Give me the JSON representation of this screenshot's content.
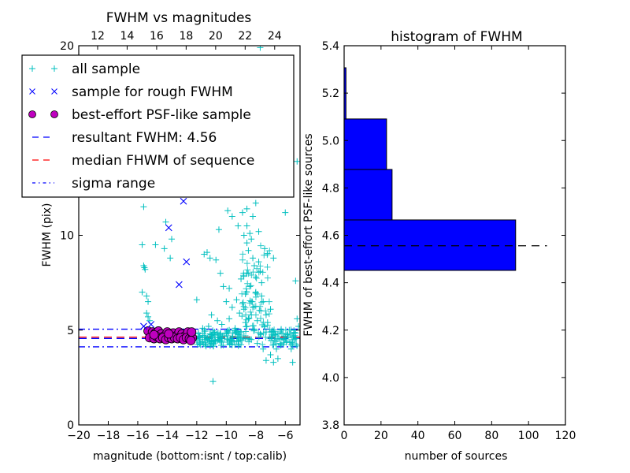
{
  "chart_data": [
    {
      "type": "scatter",
      "title": "FWHM vs magnitudes",
      "xlabel": "magnitude (bottom:isnt / top:calib)",
      "ylabel": "FWHM (pix)",
      "xlim": [
        -20,
        -5
      ],
      "ylim": [
        0,
        20
      ],
      "xticks": [
        "−20",
        "−18",
        "−16",
        "−14",
        "−12",
        "−10",
        "−8",
        "−6"
      ],
      "xtick_values": [
        -20,
        -18,
        -16,
        -14,
        -12,
        -10,
        -8,
        -6
      ],
      "yticks": [
        "0",
        "5",
        "10",
        "20"
      ],
      "ytick_values": [
        0,
        5,
        10,
        20
      ],
      "top_axis": {
        "ticks": [
          "12",
          "14",
          "16",
          "18",
          "20",
          "22",
          "24"
        ],
        "tick_values": [
          12,
          14,
          16,
          18,
          20,
          22,
          24
        ],
        "offset_to_isnt": -30.72
      },
      "legend": {
        "placement": "upper-left",
        "entries": [
          {
            "label": "all sample",
            "marker": "plus",
            "color": "#00bfbf"
          },
          {
            "label": "sample for rough FWHM",
            "marker": "x",
            "color": "#0000ff"
          },
          {
            "label": "best-effort PSF-like sample",
            "marker": "circle",
            "color": "#bf00bf"
          },
          {
            "label": "resultant FWHM: 4.56",
            "marker": "dashed-line",
            "color": "#0000ff"
          },
          {
            "label": "median FHWM of sequence",
            "marker": "dashed-line",
            "color": "#ff0000"
          },
          {
            "label": "sigma range",
            "marker": "dashdot-line",
            "color": "#0000ff"
          }
        ]
      },
      "series": [
        {
          "name": "all sample",
          "color": "#00bfbf",
          "points": [
            [
              -15.6,
              11.5
            ],
            [
              -15.7,
              9.5
            ],
            [
              -15.6,
              8.4
            ],
            [
              -15.55,
              8.3
            ],
            [
              -15.5,
              8.2
            ],
            [
              -15.7,
              7.0
            ],
            [
              -15.4,
              6.8
            ],
            [
              -15.3,
              6.5
            ],
            [
              -15.4,
              5.9
            ],
            [
              -15.3,
              5.7
            ],
            [
              -15.2,
              5.5
            ],
            [
              -14.8,
              9.5
            ],
            [
              -14.1,
              10.7
            ],
            [
              -14.2,
              9.3
            ],
            [
              -13.7,
              9.8
            ],
            [
              -13.8,
              8.8
            ],
            [
              -12.7,
              12.4
            ],
            [
              -12.0,
              6.6
            ],
            [
              -11.5,
              9.0
            ],
            [
              -11.3,
              9.1
            ],
            [
              -11.1,
              8.8
            ],
            [
              -10.7,
              8.7
            ],
            [
              -10.4,
              8.0
            ],
            [
              -10.2,
              7.3
            ],
            [
              -10.0,
              6.5
            ],
            [
              -9.8,
              7.2
            ],
            [
              -10.5,
              10.3
            ],
            [
              -9.9,
              11.3
            ],
            [
              -9.6,
              11.0
            ],
            [
              -9.2,
              10.5
            ],
            [
              -8.9,
              11.2
            ],
            [
              -8.6,
              11.4
            ],
            [
              -8.6,
              10.5
            ],
            [
              -8.4,
              10.1
            ],
            [
              -8.3,
              9.8
            ],
            [
              -8.5,
              9.2
            ],
            [
              -8.2,
              8.8
            ],
            [
              -8.1,
              8.4
            ],
            [
              -8.0,
              7.8
            ],
            [
              -8.4,
              7.3
            ],
            [
              -8.7,
              6.9
            ],
            [
              -8.9,
              6.4
            ],
            [
              -9.3,
              6.6
            ],
            [
              -9.6,
              6.2
            ],
            [
              -9.1,
              5.9
            ],
            [
              -8.5,
              5.6
            ],
            [
              -8.2,
              6.2
            ],
            [
              -7.9,
              6.9
            ],
            [
              -7.6,
              7.5
            ],
            [
              -7.5,
              6.5
            ],
            [
              -7.3,
              5.8
            ],
            [
              -7.2,
              5.4
            ],
            [
              -7.7,
              8.1
            ],
            [
              -6.8,
              8.8
            ],
            [
              -6.0,
              11.2
            ],
            [
              -5.3,
              7.6
            ],
            [
              -5.2,
              5.6
            ],
            [
              -5.1,
              5.2
            ],
            [
              -5.4,
              4.5
            ],
            [
              -5.6,
              4.0
            ],
            [
              -5.5,
              3.3
            ],
            [
              -6.5,
              3.5
            ],
            [
              -6.8,
              3.3
            ],
            [
              -7.0,
              3.7
            ],
            [
              -7.3,
              3.4
            ],
            [
              -7.5,
              4.0
            ],
            [
              -7.9,
              4.3
            ],
            [
              -8.3,
              4.5
            ],
            [
              -8.8,
              4.7
            ],
            [
              -9.2,
              4.4
            ],
            [
              -9.6,
              4.6
            ],
            [
              -10.0,
              4.8
            ],
            [
              -10.5,
              4.6
            ],
            [
              -11.0,
              4.7
            ],
            [
              -11.4,
              4.5
            ],
            [
              -11.8,
              4.6
            ],
            [
              -11.9,
              4.8
            ],
            [
              -11.6,
              5.1
            ],
            [
              -11.2,
              5.2
            ],
            [
              -10.8,
              4.9
            ],
            [
              -10.3,
              5.3
            ],
            [
              -9.8,
              5.0
            ],
            [
              -9.4,
              5.1
            ],
            [
              -9.0,
              4.9
            ],
            [
              -8.6,
              5.2
            ],
            [
              -8.1,
              5.0
            ],
            [
              -7.7,
              4.8
            ],
            [
              -7.3,
              4.9
            ],
            [
              -6.9,
              4.7
            ],
            [
              -6.5,
              4.8
            ],
            [
              -6.1,
              4.5
            ],
            [
              -5.8,
              4.6
            ],
            [
              -6.3,
              4.2
            ],
            [
              -6.6,
              4.0
            ],
            [
              -10.9,
              2.3
            ],
            [
              -8.5,
              12.3
            ],
            [
              -8.3,
              12.7
            ],
            [
              -7.9,
              12.9
            ],
            [
              -8.0,
              12.2
            ],
            [
              -9.5,
              12.8
            ],
            [
              -10.6,
              13.3
            ],
            [
              -8.3,
              17.5
            ],
            [
              -7.1,
              20.2
            ],
            [
              -7.7,
              19.9
            ],
            [
              -7.0,
              15.6
            ],
            [
              -8.6,
              14.5
            ],
            [
              -9.1,
              13.8
            ],
            [
              -7.6,
              13.6
            ],
            [
              -5.2,
              13.9
            ],
            [
              -8.0,
              11.7
            ],
            [
              -8.2,
              11.0
            ],
            [
              -8.8,
              10.0
            ],
            [
              -7.8,
              10.2
            ],
            [
              -8.6,
              9.6
            ],
            [
              -7.4,
              9.3
            ],
            [
              -7.8,
              8.6
            ],
            [
              -8.6,
              8.0
            ],
            [
              -9.0,
              7.7
            ],
            [
              -8.0,
              7.0
            ],
            [
              -7.6,
              6.8
            ],
            [
              -8.3,
              6.5
            ],
            [
              -8.8,
              6.1
            ],
            [
              -9.8,
              5.6
            ],
            [
              -10.6,
              5.5
            ],
            [
              -11.0,
              5.8
            ],
            [
              -7.0,
              6.1
            ],
            [
              -7.4,
              5.2
            ],
            [
              -7.9,
              5.5
            ],
            [
              -8.3,
              5.8
            ],
            [
              -8.7,
              5.4
            ]
          ]
        },
        {
          "name": "sample for rough FWHM",
          "color": "#0000ff",
          "points": [
            [
              -12.9,
              11.8
            ],
            [
              -13.9,
              10.4
            ],
            [
              -12.7,
              8.6
            ],
            [
              -13.2,
              7.4
            ],
            [
              -15.6,
              5.2
            ],
            [
              -15.1,
              5.3
            ]
          ]
        },
        {
          "name": "best-effort PSF-like sample",
          "color": "#bf00bf",
          "points": [
            [
              -15.3,
              4.95
            ],
            [
              -15.0,
              4.9
            ],
            [
              -14.8,
              4.85
            ],
            [
              -14.6,
              4.95
            ],
            [
              -14.4,
              4.8
            ],
            [
              -14.2,
              4.7
            ],
            [
              -14.0,
              4.9
            ],
            [
              -13.8,
              4.75
            ],
            [
              -13.6,
              4.85
            ],
            [
              -13.4,
              4.7
            ],
            [
              -13.2,
              4.9
            ],
            [
              -13.0,
              4.8
            ],
            [
              -12.8,
              4.7
            ],
            [
              -12.6,
              4.9
            ],
            [
              -12.4,
              4.75
            ],
            [
              -15.2,
              4.6
            ],
            [
              -14.9,
              4.55
            ],
            [
              -14.7,
              4.65
            ],
            [
              -14.5,
              4.55
            ],
            [
              -14.3,
              4.6
            ],
            [
              -14.1,
              4.5
            ],
            [
              -13.9,
              4.6
            ],
            [
              -13.7,
              4.55
            ],
            [
              -13.5,
              4.6
            ],
            [
              -13.3,
              4.55
            ],
            [
              -13.1,
              4.6
            ],
            [
              -12.9,
              4.5
            ],
            [
              -12.7,
              4.6
            ],
            [
              -12.5,
              4.55
            ],
            [
              -12.3,
              4.6
            ],
            [
              -12.35,
              4.9
            ],
            [
              -13.9,
              4.8
            ],
            [
              -14.9,
              4.75
            ],
            [
              -12.4,
              4.45
            ]
          ]
        }
      ],
      "hlines": [
        {
          "name": "resultant FWHM",
          "y": 4.56,
          "color": "#0000ff",
          "style": "dashed"
        },
        {
          "name": "median FHWM of sequence",
          "y": 4.63,
          "color": "#ff0000",
          "style": "dashed"
        },
        {
          "name": "sigma upper",
          "y": 5.05,
          "color": "#0000ff",
          "style": "dashdot"
        },
        {
          "name": "sigma lower",
          "y": 4.12,
          "color": "#0000ff",
          "style": "dashdot"
        }
      ]
    },
    {
      "type": "bar",
      "orientation": "horizontal",
      "title": "histogram of FWHM",
      "xlabel": "number of sources",
      "ylabel": "FWHM of best-effort PSF-like sources",
      "xlim": [
        0,
        120
      ],
      "ylim": [
        3.8,
        5.4
      ],
      "xticks": [
        "0",
        "20",
        "40",
        "60",
        "80",
        "100",
        "120"
      ],
      "xtick_values": [
        0,
        20,
        40,
        60,
        80,
        100,
        120
      ],
      "yticks": [
        "3.8",
        "4.0",
        "4.2",
        "4.4",
        "4.6",
        "4.8",
        "5.0",
        "5.2",
        "5.4"
      ],
      "ytick_values": [
        3.8,
        4.0,
        4.2,
        4.4,
        4.6,
        4.8,
        5.0,
        5.2,
        5.4
      ],
      "color": "#0000ff",
      "bins": [
        {
          "low": 4.452,
          "high": 4.665,
          "count": 93
        },
        {
          "low": 4.665,
          "high": 4.878,
          "count": 26
        },
        {
          "low": 4.878,
          "high": 5.091,
          "count": 23
        },
        {
          "low": 5.091,
          "high": 5.307,
          "count": 1
        }
      ],
      "hline": {
        "y": 4.556,
        "x_end": 110,
        "color": "#000000",
        "style": "dashed"
      }
    }
  ]
}
